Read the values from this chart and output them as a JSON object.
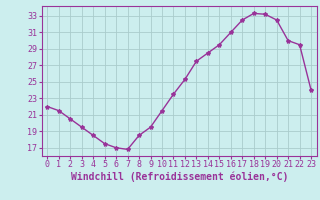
{
  "x": [
    0,
    1,
    2,
    3,
    4,
    5,
    6,
    7,
    8,
    9,
    10,
    11,
    12,
    13,
    14,
    15,
    16,
    17,
    18,
    19,
    20,
    21,
    22,
    23
  ],
  "y": [
    22.0,
    21.5,
    20.5,
    19.5,
    18.5,
    17.5,
    17.0,
    16.8,
    18.5,
    19.5,
    21.5,
    23.5,
    25.3,
    27.5,
    28.5,
    29.5,
    31.0,
    32.5,
    33.3,
    33.2,
    32.5,
    30.0,
    29.5,
    24.0
  ],
  "line_color": "#993399",
  "marker": "*",
  "marker_size": 3,
  "bg_color": "#cceeee",
  "grid_color": "#aacccc",
  "xlabel": "Windchill (Refroidissement éolien,°C)",
  "xlabel_fontsize": 7,
  "yticks": [
    17,
    19,
    21,
    23,
    25,
    27,
    29,
    31,
    33
  ],
  "xtick_labels": [
    "0",
    "1",
    "2",
    "3",
    "4",
    "5",
    "6",
    "7",
    "8",
    "9",
    "10",
    "11",
    "12",
    "13",
    "14",
    "15",
    "16",
    "17",
    "18",
    "19",
    "20",
    "21",
    "22",
    "23"
  ],
  "xlim": [
    -0.5,
    23.5
  ],
  "ylim": [
    16.0,
    34.2
  ],
  "tick_color": "#993399",
  "tick_fontsize": 6,
  "line_width": 1.0,
  "spine_color": "#993399"
}
